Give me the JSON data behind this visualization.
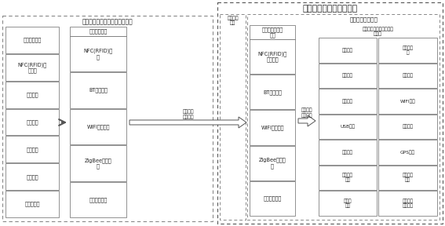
{
  "title_main": "智能终端（软硬件系统）",
  "title_left": "触发设备（命令产生发射模块）",
  "label_cmd_recv": "命令接收\n模块",
  "label_sw_safe": "软件安全工作模式",
  "label_sw_ctrl": "软件操作系统用户功能控\n制模块",
  "left_col1": [
    "命令产生模块",
    "NFC(RFID)标\n签设定",
    "指纹识别",
    "虹膜识别",
    "面部识别",
    "声音识别",
    "传感器采集"
  ],
  "left_col2_title": "命令发射模块",
  "left_col2": [
    "NFC(RFID)标\n签",
    "BT发射模块",
    "WIFI发射模块",
    "ZigBee发射模\n块",
    "红外发射模块"
  ],
  "mid_col_title": "软硬件接口控制\n模块",
  "mid_col": [
    "NFC(RFID)读\n写器模块",
    "BT接收模块",
    "WIFI接收模块",
    "ZigBee接收模\n块",
    "红外接收模块"
  ],
  "right_col1": [
    "语音模块",
    "蓝牙模块",
    "红外模块",
    "USB模块",
    "录音模块",
    "交互界面\n模块",
    "收音机\n模块"
  ],
  "right_col2": [
    "短消息模\n块",
    "数据模块",
    "WIFI模块",
    "串口模块",
    "GPS模块",
    "拍照摄像\n模块",
    "应用程序\n安装模块"
  ],
  "arrow1_label": "切换指令\n权限指令",
  "arrow2_label": "模式切换\n权限设置",
  "bg_color": "#ffffff",
  "box_fill": "#ffffff",
  "box_edge": "#666666",
  "text_color": "#222222",
  "font_size": 5.2
}
